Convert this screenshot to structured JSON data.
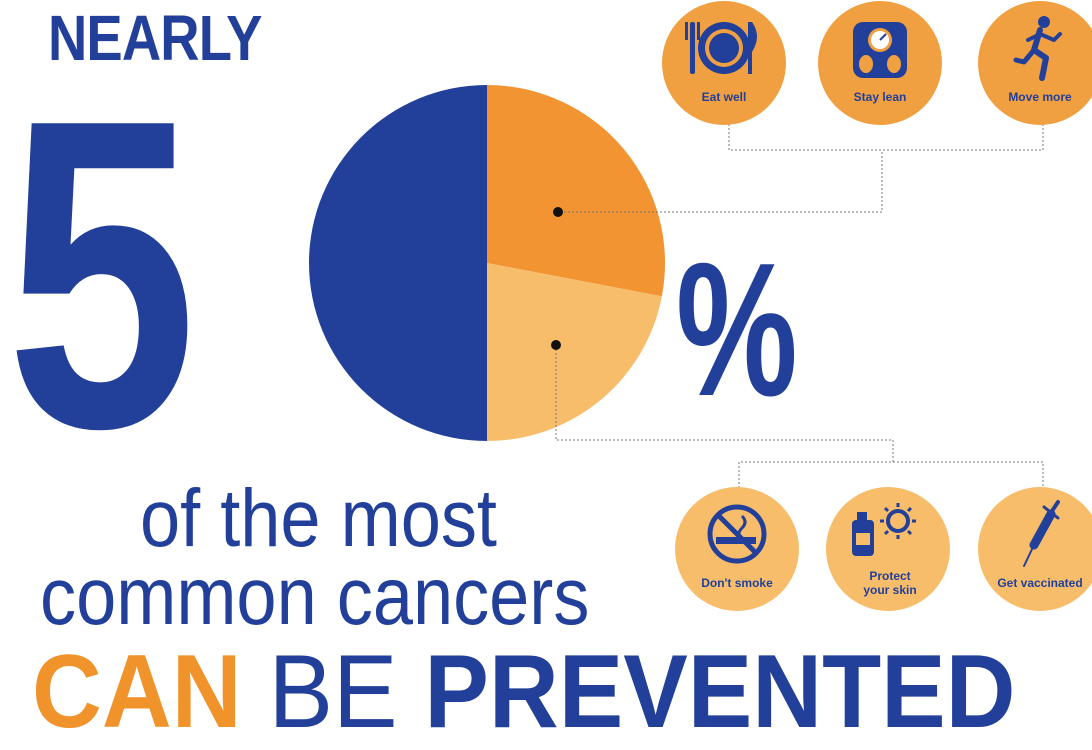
{
  "headline": {
    "nearly": "NEARLY",
    "number_digit": "5",
    "percent_sign": "%",
    "line1": "of the most",
    "line2": "common cancers",
    "can": "CAN",
    "be": "BE",
    "prevented": "PREVENTED"
  },
  "pie": {
    "segments": [
      {
        "key": "not-preventable",
        "fraction": 0.5,
        "color": "#22409a"
      },
      {
        "key": "lifestyle",
        "fraction": 0.28,
        "color": "#f29431"
      },
      {
        "key": "protective",
        "fraction": 0.22,
        "color": "#f8bd6a"
      }
    ]
  },
  "top_badges": [
    {
      "label": "Eat well",
      "icon": "plate-cutlery-icon"
    },
    {
      "label": "Stay lean",
      "icon": "scale-icon"
    },
    {
      "label": "Move more",
      "icon": "runner-icon"
    }
  ],
  "bottom_badges": [
    {
      "label": "Don't smoke",
      "icon": "no-smoking-icon"
    },
    {
      "label_line1": "Protect",
      "label_line2": "your skin",
      "icon": "sunscreen-sun-icon"
    },
    {
      "label": "Get vaccinated",
      "icon": "syringe-icon"
    }
  ],
  "colors": {
    "brand_blue": "#22409a",
    "orange": "#f29431",
    "light_orange": "#f8bd6a",
    "badge_orange": "#f0a041"
  }
}
